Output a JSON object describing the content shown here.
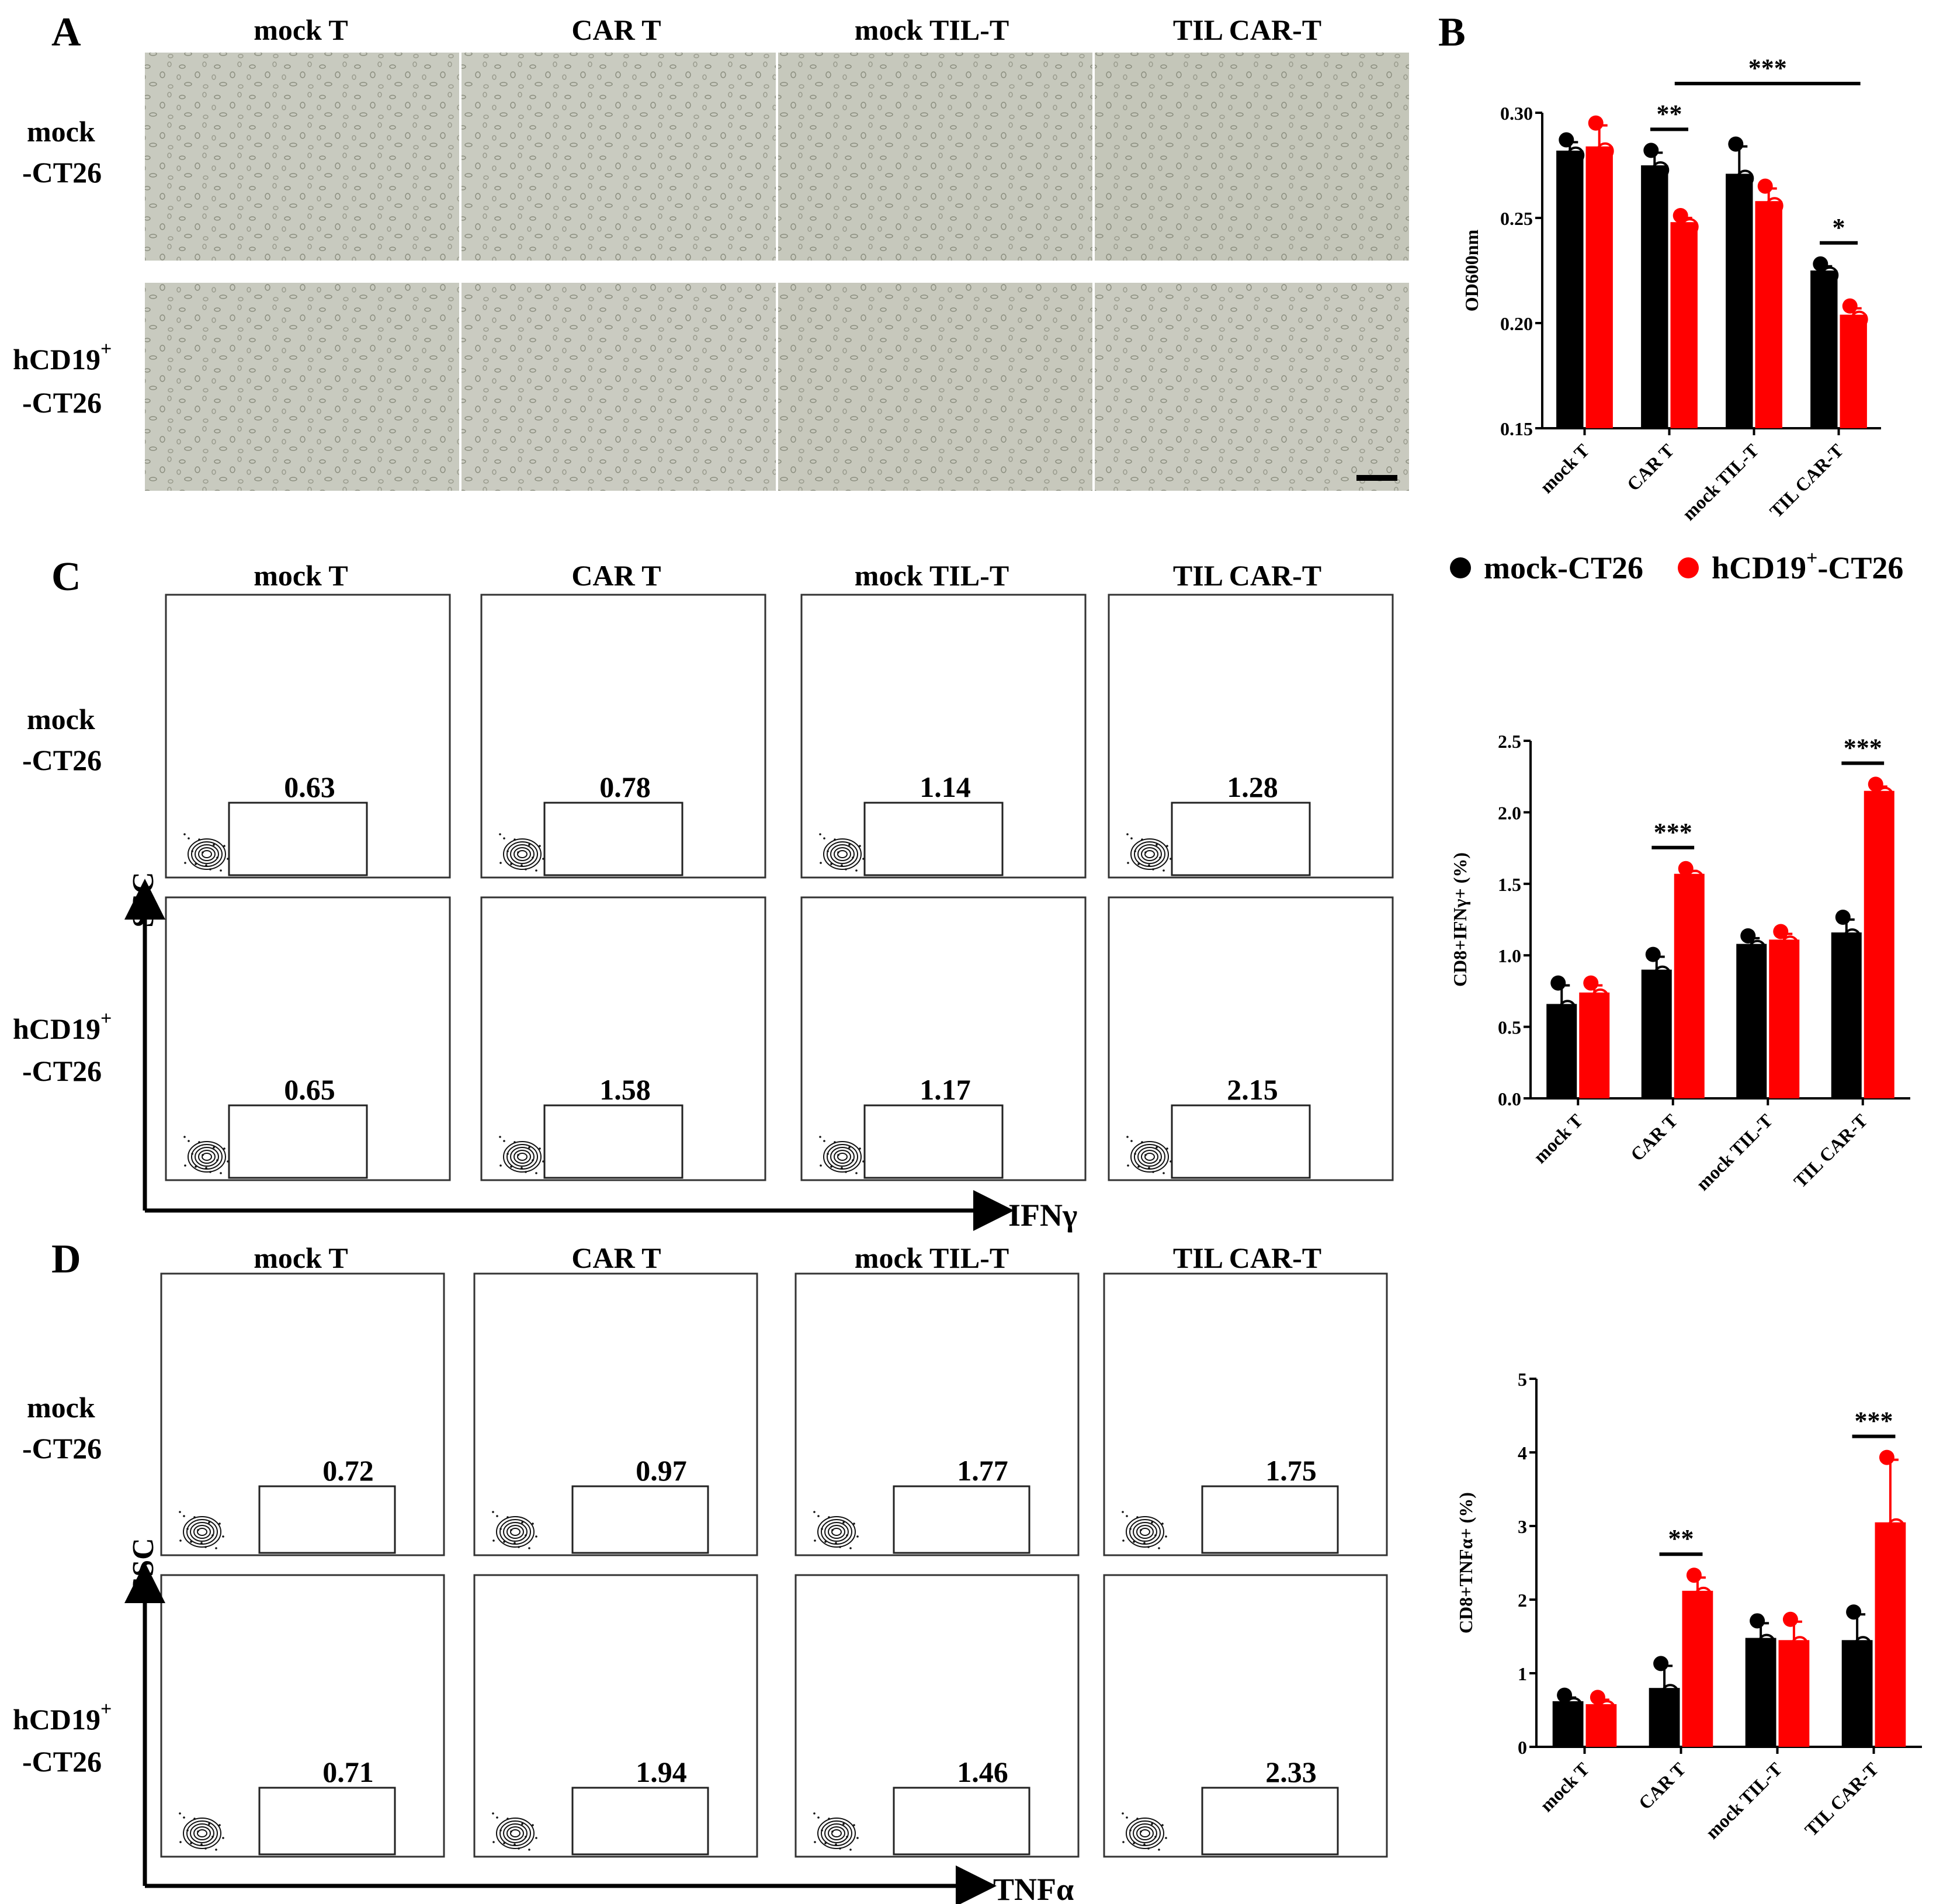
{
  "panel_letters": {
    "a": "A",
    "b": "B",
    "c": "C",
    "d": "D"
  },
  "groups": [
    "mock T",
    "CAR T",
    "mock TIL-T",
    "TIL CAR-T"
  ],
  "rows": {
    "mock": [
      "mock",
      "-CT26"
    ],
    "hcd19": [
      "hCD19",
      "+",
      "-CT26"
    ]
  },
  "flow_axes": {
    "y": "SSC",
    "x_c": "IFNγ",
    "x_d": "TNFα"
  },
  "panel_c_gates": {
    "mock": [
      "0.63",
      "0.78",
      "1.14",
      "1.28"
    ],
    "hcd19": [
      "0.65",
      "1.58",
      "1.17",
      "2.15"
    ]
  },
  "panel_d_gates": {
    "mock": [
      "0.72",
      "0.97",
      "1.77",
      "1.75"
    ],
    "hcd19": [
      "0.71",
      "1.94",
      "1.46",
      "2.33"
    ]
  },
  "legend": {
    "series1": "mock-CT26",
    "series2": "hCD19",
    "series2_sup": "+",
    "series2_suffix": "-CT26",
    "color1": "#000000",
    "color2": "#ff0000"
  },
  "colors": {
    "black": "#000000",
    "red": "#ff0000",
    "micro_bg": "#c8cabf"
  },
  "chart_data": [
    {
      "panel": "B",
      "type": "bar",
      "ylabel": "OD600nm",
      "ylim": [
        0.15,
        0.3
      ],
      "yticks": [
        "0.15",
        "0.20",
        "0.25",
        "0.30"
      ],
      "categories": [
        "mock T",
        "CAR T",
        "mock TIL-T",
        "TIL CAR-T"
      ],
      "series": [
        {
          "name": "mock-CT26",
          "values": [
            0.282,
            0.275,
            0.271,
            0.225
          ],
          "errors": [
            0.004,
            0.006,
            0.013,
            0.002
          ]
        },
        {
          "name": "hCD19+-CT26",
          "values": [
            0.284,
            0.248,
            0.258,
            0.204
          ],
          "errors": [
            0.01,
            0.002,
            0.006,
            0.003
          ]
        }
      ],
      "annotations": [
        {
          "text": "**",
          "from": 1,
          "to": 1
        },
        {
          "text": "***",
          "from": 1,
          "to": 3
        },
        {
          "text": "*",
          "from": 3,
          "to": 3
        }
      ]
    },
    {
      "panel": "C",
      "type": "bar",
      "ylabel": "CD8+IFNγ+ (%)",
      "ylim": [
        0.0,
        2.5
      ],
      "yticks": [
        "0.0",
        "0.5",
        "1.0",
        "1.5",
        "2.0",
        "2.5"
      ],
      "categories": [
        "mock T",
        "CAR T",
        "mock TIL-T",
        "TIL CAR-T"
      ],
      "series": [
        {
          "name": "mock-CT26",
          "values": [
            0.66,
            0.9,
            1.08,
            1.16
          ],
          "errors": [
            0.13,
            0.09,
            0.04,
            0.09
          ]
        },
        {
          "name": "hCD19+-CT26",
          "values": [
            0.74,
            1.57,
            1.11,
            2.15
          ],
          "errors": [
            0.05,
            0.02,
            0.04,
            0.03
          ]
        }
      ],
      "annotations": [
        {
          "text": "***",
          "from": 1,
          "to": 1
        },
        {
          "text": "***",
          "from": 3,
          "to": 3
        }
      ]
    },
    {
      "panel": "D",
      "type": "bar",
      "ylabel": "CD8+TNFα+ (%)",
      "ylim": [
        0,
        5
      ],
      "yticks": [
        "0",
        "1",
        "2",
        "3",
        "4",
        "5"
      ],
      "categories": [
        "mock T",
        "CAR T",
        "mock TIL-T",
        "TIL CAR-T"
      ],
      "series": [
        {
          "name": "mock-CT26",
          "values": [
            0.62,
            0.8,
            1.48,
            1.45
          ],
          "errors": [
            0.05,
            0.3,
            0.2,
            0.35
          ]
        },
        {
          "name": "hCD19+-CT26",
          "values": [
            0.58,
            2.12,
            1.45,
            3.05
          ],
          "errors": [
            0.06,
            0.18,
            0.25,
            0.85
          ]
        }
      ],
      "annotations": [
        {
          "text": "**",
          "from": 1,
          "to": 1
        },
        {
          "text": "***",
          "from": 3,
          "to": 3
        }
      ]
    }
  ]
}
